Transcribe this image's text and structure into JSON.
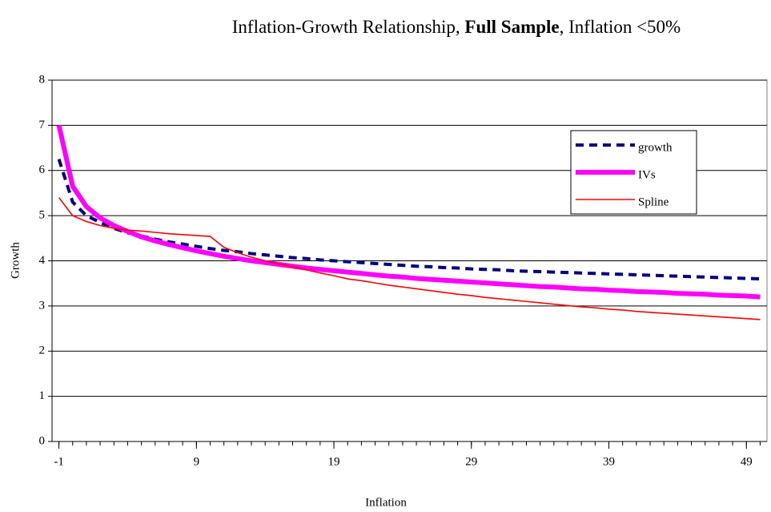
{
  "chart_data": {
    "type": "line",
    "title": {
      "before": "Inflation-Growth Relationship,",
      "bold": "Full Sample",
      "after": ", Inflation <50%"
    },
    "x_label": "Inflation",
    "y_label": "Growth",
    "x": [
      -1,
      0,
      1,
      2,
      3,
      4,
      5,
      6,
      7,
      8,
      9,
      10,
      11,
      12,
      13,
      14,
      15,
      16,
      17,
      18,
      19,
      20,
      21,
      22,
      23,
      24,
      25,
      26,
      27,
      28,
      29,
      30,
      31,
      32,
      33,
      34,
      35,
      36,
      37,
      38,
      39,
      40,
      41,
      42,
      43,
      44,
      45,
      46,
      47,
      48,
      49,
      50
    ],
    "xlim": [
      -1.5,
      50.5
    ],
    "xticks": [
      -1,
      9,
      19,
      29,
      39,
      49
    ],
    "ylim": [
      0,
      8
    ],
    "yticks": [
      0,
      1,
      2,
      3,
      4,
      5,
      6,
      7,
      8
    ],
    "grid": true,
    "legend": "upper right",
    "series": [
      {
        "name": "growth",
        "color": "#000080",
        "values": [
          6.25,
          5.3,
          5.0,
          4.85,
          4.72,
          4.62,
          4.55,
          4.48,
          4.42,
          4.37,
          4.32,
          4.27,
          4.23,
          4.2,
          4.16,
          4.13,
          4.1,
          4.07,
          4.05,
          4.02,
          4.0,
          3.98,
          3.96,
          3.94,
          3.92,
          3.9,
          3.88,
          3.87,
          3.85,
          3.84,
          3.82,
          3.81,
          3.8,
          3.78,
          3.77,
          3.76,
          3.75,
          3.74,
          3.73,
          3.72,
          3.71,
          3.7,
          3.69,
          3.68,
          3.67,
          3.66,
          3.65,
          3.64,
          3.63,
          3.62,
          3.61,
          3.6
        ]
      },
      {
        "name": "IVs",
        "color": "#ff00ff",
        "values": [
          7.0,
          5.65,
          5.2,
          4.95,
          4.78,
          4.65,
          4.53,
          4.44,
          4.36,
          4.29,
          4.22,
          4.16,
          4.1,
          4.05,
          4.0,
          3.96,
          3.92,
          3.88,
          3.84,
          3.81,
          3.78,
          3.75,
          3.72,
          3.69,
          3.66,
          3.64,
          3.61,
          3.59,
          3.57,
          3.55,
          3.53,
          3.51,
          3.49,
          3.47,
          3.45,
          3.43,
          3.42,
          3.4,
          3.38,
          3.37,
          3.35,
          3.34,
          3.32,
          3.31,
          3.3,
          3.28,
          3.27,
          3.26,
          3.24,
          3.23,
          3.22,
          3.2
        ]
      },
      {
        "name": "Spline",
        "color": "#ff0000",
        "values": [
          5.4,
          5.0,
          4.87,
          4.78,
          4.72,
          4.68,
          4.66,
          4.63,
          4.6,
          4.58,
          4.56,
          4.54,
          4.3,
          4.18,
          4.08,
          4.0,
          3.93,
          3.87,
          3.8,
          3.73,
          3.67,
          3.6,
          3.56,
          3.51,
          3.46,
          3.42,
          3.38,
          3.34,
          3.3,
          3.26,
          3.23,
          3.19,
          3.16,
          3.13,
          3.1,
          3.07,
          3.04,
          3.01,
          2.98,
          2.96,
          2.93,
          2.91,
          2.88,
          2.86,
          2.84,
          2.82,
          2.8,
          2.78,
          2.76,
          2.74,
          2.72,
          2.7
        ]
      }
    ]
  }
}
